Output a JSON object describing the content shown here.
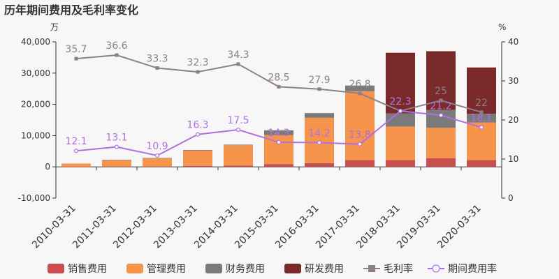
{
  "chart_data": {
    "type": "bar",
    "title": "历年期间费用及毛利率变化",
    "left_unit": "万",
    "right_unit": "%",
    "categories": [
      "2010-03-31",
      "2011-03-31",
      "2012-03-31",
      "2013-03-31",
      "2014-03-31",
      "2015-03-31",
      "2016-03-31",
      "2017-03-31",
      "2018-03-31",
      "2019-03-31",
      "2020-03-31"
    ],
    "left_axis": {
      "min": -10000,
      "max": 40000,
      "ticks": [
        -10000,
        0,
        10000,
        20000,
        30000,
        40000
      ],
      "tick_labels": [
        "-10,000",
        "0",
        "10,000",
        "20,000",
        "30,000",
        "40,000"
      ]
    },
    "right_axis": {
      "min": 0,
      "max": 40,
      "ticks": [
        0,
        10,
        20,
        30,
        40
      ],
      "tick_labels": [
        "0",
        "10",
        "20",
        "30",
        "40"
      ]
    },
    "bar_series": [
      {
        "name": "销售费用",
        "color": "#c94f4f",
        "values": [
          50,
          100,
          100,
          300,
          400,
          900,
          1200,
          2200,
          2200,
          2800,
          2200
        ]
      },
      {
        "name": "管理费用",
        "color": "#f5944a",
        "values": [
          1000,
          2100,
          2700,
          4900,
          6500,
          9300,
          14500,
          22000,
          10700,
          9700,
          12000
        ]
      },
      {
        "name": "财务费用",
        "color": "#7a7a7a",
        "values": [
          0,
          50,
          50,
          200,
          200,
          1500,
          1500,
          1800,
          4200,
          5700,
          2800
        ]
      },
      {
        "name": "研发费用",
        "color": "#7a2a2a",
        "values": [
          0,
          0,
          0,
          0,
          0,
          0,
          0,
          0,
          19400,
          18800,
          14800
        ]
      }
    ],
    "line_series": [
      {
        "name": "毛利率",
        "color": "#8c7f8c",
        "marker": "square",
        "values": [
          35.7,
          36.6,
          33.3,
          32.3,
          34.3,
          28.5,
          27.9,
          26.8,
          22.3,
          25,
          22
        ],
        "labels": [
          "35.7",
          "36.6",
          "33.3",
          "32.3",
          "34.3",
          "28.5",
          "27.9",
          "26.8",
          "22.3",
          "25",
          "22"
        ]
      },
      {
        "name": "期间费用率",
        "color": "#b06fe0",
        "marker": "circle",
        "values": [
          12.1,
          13.1,
          10.9,
          16.3,
          17.5,
          14.3,
          14.2,
          13.8,
          22.3,
          21.2,
          18.1
        ],
        "labels": [
          "12.1",
          "13.1",
          "10.9",
          "16.3",
          "17.5",
          "14.3",
          "14.2",
          "13.8",
          "22.3",
          "21.2",
          "18.1"
        ]
      }
    ],
    "legend": [
      "销售费用",
      "管理费用",
      "财务费用",
      "研发费用",
      "毛利率",
      "期间费用率"
    ],
    "legend_position": "bottom",
    "grid": false
  }
}
